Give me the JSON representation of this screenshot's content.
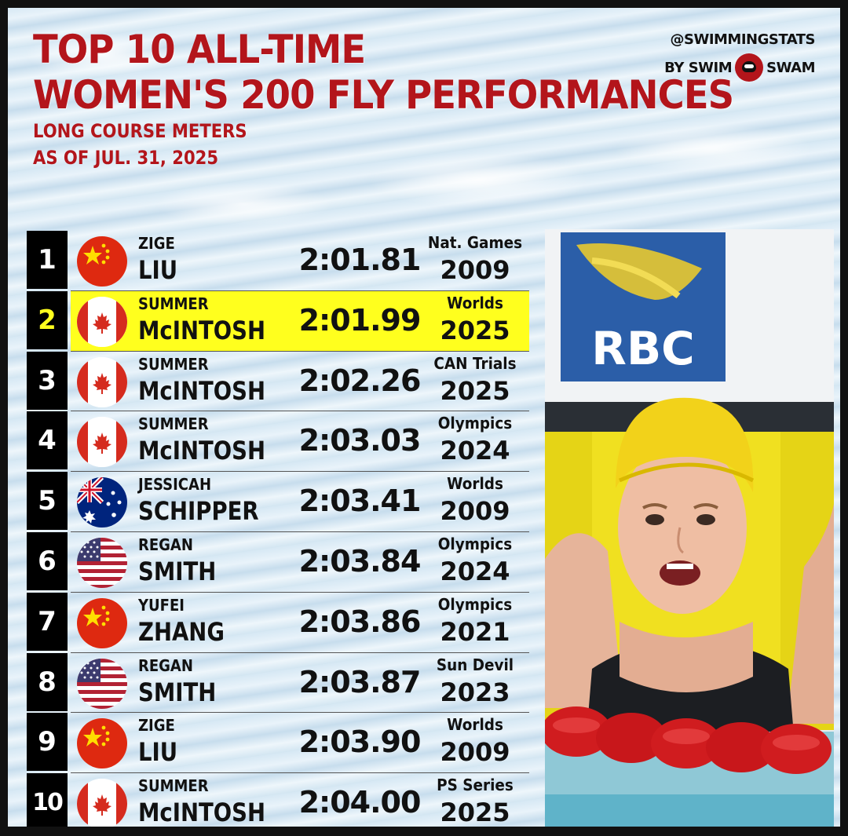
{
  "header": {
    "title_line1": "TOP 10 ALL-TIME",
    "title_line2": "WOMEN'S 200 FLY PERFORMANCES",
    "subtitle_line1": "LONG COURSE METERS",
    "subtitle_line2": "AS OF JUL. 31, 2025"
  },
  "brand": {
    "handle": "@SWIMMINGSTATS",
    "by": "BY SWIM",
    "name": "SWAM",
    "logo_icon": "swimswam-logo-icon"
  },
  "colors": {
    "title_red": "#b3151b",
    "highlight_yellow": "#ffff1e",
    "rank_bg": "#000000"
  },
  "photo": {
    "sign_text": "RBC"
  },
  "rows": [
    {
      "rank": "1",
      "first": "ZIGE",
      "last": "LIU",
      "time": "2:01.81",
      "meet": "Nat. Games",
      "year": "2009",
      "flag": "china",
      "highlight": false
    },
    {
      "rank": "2",
      "first": "SUMMER",
      "last": "McINTOSH",
      "time": "2:01.99",
      "meet": "Worlds",
      "year": "2025",
      "flag": "canada",
      "highlight": true
    },
    {
      "rank": "3",
      "first": "SUMMER",
      "last": "McINTOSH",
      "time": "2:02.26",
      "meet": "CAN Trials",
      "year": "2025",
      "flag": "canada",
      "highlight": false
    },
    {
      "rank": "4",
      "first": "SUMMER",
      "last": "McINTOSH",
      "time": "2:03.03",
      "meet": "Olympics",
      "year": "2024",
      "flag": "canada",
      "highlight": false
    },
    {
      "rank": "5",
      "first": "JESSICAH",
      "last": "SCHIPPER",
      "time": "2:03.41",
      "meet": "Worlds",
      "year": "2009",
      "flag": "australia",
      "highlight": false
    },
    {
      "rank": "6",
      "first": "REGAN",
      "last": "SMITH",
      "time": "2:03.84",
      "meet": "Olympics",
      "year": "2024",
      "flag": "usa",
      "highlight": false
    },
    {
      "rank": "7",
      "first": "YUFEI",
      "last": "ZHANG",
      "time": "2:03.86",
      "meet": "Olympics",
      "year": "2021",
      "flag": "china",
      "highlight": false
    },
    {
      "rank": "8",
      "first": "REGAN",
      "last": "SMITH",
      "time": "2:03.87",
      "meet": "Sun Devil",
      "year": "2023",
      "flag": "usa",
      "highlight": false
    },
    {
      "rank": "9",
      "first": "ZIGE",
      "last": "LIU",
      "time": "2:03.90",
      "meet": "Worlds",
      "year": "2009",
      "flag": "china",
      "highlight": false
    },
    {
      "rank": "10",
      "first": "SUMMER",
      "last": "McINTOSH",
      "time": "2:04.00",
      "meet": "PS Series",
      "year": "2025",
      "flag": "canada",
      "highlight": false
    }
  ]
}
